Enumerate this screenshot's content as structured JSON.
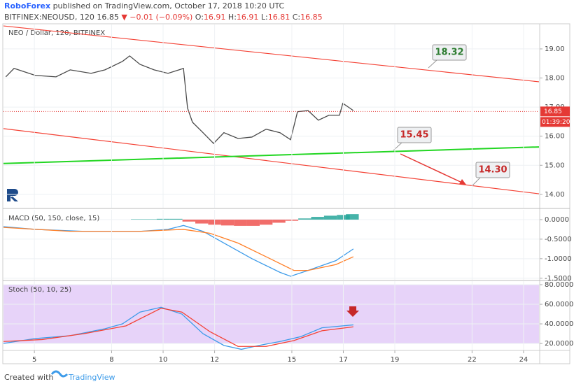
{
  "header": {
    "brand": "RoboForex",
    "published": "published on TradingView.com, October 17, 2018 10:20 UTC",
    "symbol": "BITFINEX:NEOUSD, 120",
    "last": "16.85",
    "change": "▼ −0.01 (−0.09%)",
    "open_label": "O:",
    "open": "16.91",
    "high_label": "H:",
    "high": "16.91",
    "low_label": "L:",
    "low": "16.81",
    "close_label": "C:",
    "close": "16.85"
  },
  "chart_data": [
    {
      "type": "line",
      "title": "NEO / Dollar, 120, BITFINEX",
      "xlim": [
        3.8,
        24.6
      ],
      "ylim": [
        13.54,
        19.84
      ],
      "yticks": [
        {
          "value": 14,
          "label": "14.00"
        },
        {
          "value": 15,
          "label": "15.00"
        },
        {
          "value": 16,
          "label": "16.00"
        },
        {
          "value": 17,
          "label": "17.00"
        },
        {
          "value": 18,
          "label": "18.00"
        },
        {
          "value": 19,
          "label": "19.00"
        }
      ],
      "series": [
        {
          "color": "#4a4a4a",
          "x": [
            3.89,
            4.21,
            5.03,
            5.84,
            6.39,
            7.2,
            7.74,
            8.42,
            8.7,
            9.1,
            9.65,
            10.19,
            10.79,
            10.95,
            11.14,
            11.55,
            11.96,
            12.36,
            12.91,
            13.45,
            14.0,
            14.54,
            14.95,
            15.22,
            15.63,
            16.03,
            16.44,
            16.85,
            16.98,
            17.26,
            17.39
          ],
          "values": [
            18.04,
            18.33,
            18.09,
            18.04,
            18.28,
            18.16,
            18.28,
            18.57,
            18.76,
            18.47,
            18.28,
            18.16,
            18.33,
            16.96,
            16.48,
            16.12,
            15.75,
            16.12,
            15.92,
            15.97,
            16.24,
            16.12,
            15.88,
            16.84,
            16.88,
            16.55,
            16.72,
            16.72,
            17.13,
            16.96,
            16.88
          ]
        }
      ],
      "trendlines": [
        {
          "color": "#f44336",
          "x": [
            3.8,
            24.6
          ],
          "values": [
            19.79,
            17.87
          ]
        },
        {
          "color": "#f44336",
          "x": [
            3.8,
            24.6
          ],
          "values": [
            16.26,
            14.02
          ]
        },
        {
          "color": "#22d622",
          "x": [
            3.8,
            24.6
          ],
          "values": [
            15.06,
            15.63
          ]
        }
      ],
      "last_price": {
        "value": 16.85,
        "label": "16.85",
        "color": "#e53935"
      },
      "countdown": "01:39:20",
      "annotations": [
        {
          "value": 18.32,
          "label": "18.32",
          "color": "#2e7d32"
        },
        {
          "value": 15.45,
          "label": "15.45",
          "color": "#c62828"
        },
        {
          "value": 14.3,
          "label": "14.30",
          "color": "#c62828"
        }
      ]
    },
    {
      "type": "line",
      "title": "MACD (50, 150, close, 15)",
      "xlim": [
        3.8,
        24.6
      ],
      "ylim": [
        -1.54,
        0.25
      ],
      "yticks": [
        {
          "value": 0,
          "label": "0.0000"
        },
        {
          "value": -0.5,
          "label": "-0.5000"
        },
        {
          "value": -1,
          "label": "-1.0000"
        },
        {
          "value": -1.5,
          "label": "-1.5000"
        }
      ],
      "series": [
        {
          "color": "#3d9be9",
          "x": [
            3.8,
            5.03,
            6.93,
            9.1,
            10.19,
            10.79,
            11.55,
            12.36,
            13.45,
            14.54,
            14.95,
            15.63,
            16.71,
            17.39
          ],
          "values": [
            -0.18,
            -0.25,
            -0.3,
            -0.3,
            -0.25,
            -0.15,
            -0.3,
            -0.6,
            -1.0,
            -1.35,
            -1.45,
            -1.3,
            -1.05,
            -0.75
          ]
        },
        {
          "color": "#ff7f27",
          "x": [
            3.8,
            6.39,
            9.1,
            10.79,
            11.82,
            12.91,
            14.0,
            15.08,
            15.63,
            16.71,
            17.39
          ],
          "values": [
            -0.2,
            -0.3,
            -0.3,
            -0.25,
            -0.35,
            -0.6,
            -0.95,
            -1.3,
            -1.3,
            -1.15,
            -0.95
          ]
        }
      ],
      "histogram": {
        "positive_color": "#26a69a",
        "negative_color": "#ef5350",
        "x": [
          9.0,
          9.5,
          10.0,
          10.5,
          11.0,
          11.5,
          12.0,
          12.5,
          13.0,
          13.5,
          14.0,
          14.5,
          15.0,
          15.5,
          16.0,
          16.5,
          17.0,
          17.35
        ],
        "values": [
          0.01,
          0.01,
          0.02,
          0.02,
          -0.05,
          -0.1,
          -0.13,
          -0.15,
          -0.16,
          -0.16,
          -0.13,
          -0.08,
          -0.03,
          0.03,
          0.07,
          0.1,
          0.12,
          0.14
        ]
      }
    },
    {
      "type": "line",
      "title": "Stoch (50, 10, 25)",
      "xlim": [
        3.8,
        24.6
      ],
      "ylim": [
        13.6,
        83.6
      ],
      "yticks": [
        {
          "value": 20,
          "label": "20.0000"
        },
        {
          "value": 40,
          "label": "40.0000"
        },
        {
          "value": 60,
          "label": "60.0000"
        },
        {
          "value": 80,
          "label": "80.0000"
        }
      ],
      "band": [
        20,
        80
      ],
      "band_color": "#e1c8f7",
      "xticks": [
        5,
        8,
        10,
        12,
        15,
        17,
        19,
        22,
        24
      ],
      "series": [
        {
          "color": "#3d9be9",
          "x": [
            3.8,
            5.03,
            6.39,
            7.74,
            8.42,
            9.1,
            9.92,
            10.73,
            11.55,
            12.36,
            13.04,
            13.72,
            14.54,
            15.35,
            16.17,
            16.98,
            17.39
          ],
          "values": [
            20,
            25,
            28,
            35,
            40,
            52,
            57,
            50,
            30,
            18,
            14,
            18,
            22,
            27,
            36,
            38,
            39
          ]
        },
        {
          "color": "#f44336",
          "x": [
            3.8,
            5.3,
            6.93,
            8.56,
            9.92,
            10.73,
            11.82,
            12.91,
            14.0,
            15.08,
            16.17,
            17.39
          ],
          "values": [
            22,
            24,
            30,
            38,
            56,
            52,
            32,
            17,
            17,
            23,
            33,
            37
          ]
        }
      ]
    }
  ],
  "footer": {
    "created": "Created with",
    "brand": "TradingView"
  }
}
